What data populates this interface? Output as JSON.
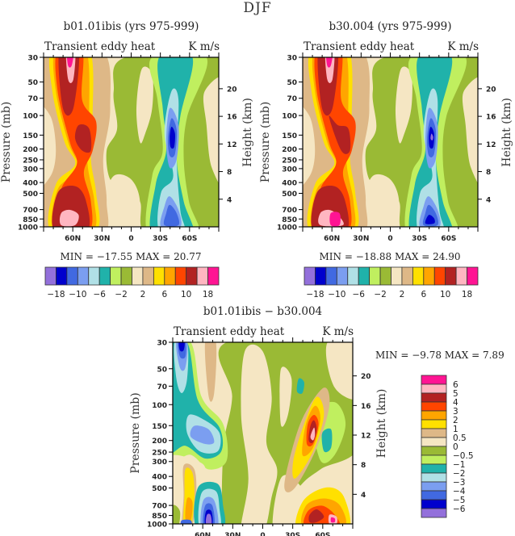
{
  "figure_title": "DJF",
  "chart_data": [
    {
      "id": "panel-a",
      "type": "heatmap",
      "title": "b01.01ibis (yrs 975-999)",
      "left_string": "Transient eddy heat",
      "right_string": "K m/s",
      "xlabel": "",
      "ylabel": "Pressure (mb)",
      "ylabel_right": "Height (km)",
      "x_tick_labels": [
        "60N",
        "30N",
        "0",
        "30S",
        "60S"
      ],
      "x_range": [
        "90N",
        "90S"
      ],
      "y_tick_labels": [
        "30",
        "50",
        "70",
        "100",
        "150",
        "200",
        "250",
        "300",
        "400",
        "500",
        "700",
        "850",
        "1000"
      ],
      "y_range_mb": [
        1000,
        30
      ],
      "y_right_tick_labels": [
        "4",
        "8",
        "12",
        "16",
        "20"
      ],
      "min_max_text": "MIN = −17.55   MAX =  20.77",
      "min": -17.55,
      "max": 20.77,
      "colorbar": {
        "orientation": "horizontal",
        "labels": [
          "−18",
          "−10",
          "−6",
          "−2",
          "2",
          "6",
          "10",
          "18"
        ],
        "levels": [
          -18,
          -14,
          -10,
          -8,
          -6,
          -4,
          -2,
          0,
          2,
          4,
          6,
          8,
          10,
          14,
          18
        ],
        "colors": [
          "#9370db",
          "#0000cd",
          "#4169e1",
          "#7b9ef0",
          "#b0e0e6",
          "#20b2aa",
          "#c0ef5f",
          "#9aba35",
          "#f5e6c3",
          "#deb887",
          "#ffe000",
          "#ffa500",
          "#ff4500",
          "#b22222",
          "#ffb6c1",
          "#ff1493"
        ]
      },
      "features": [
        {
          "name": "NH positive maximum",
          "lat": "60N",
          "level_mb": "30-1000",
          "max_class": 18
        },
        {
          "name": "SH negative minimum",
          "lat": "45S",
          "level_mb": "150",
          "min_class": -18
        }
      ]
    },
    {
      "id": "panel-b",
      "type": "heatmap",
      "title": "b30.004 (yrs 975-999)",
      "left_string": "Transient eddy heat",
      "right_string": "K m/s",
      "xlabel": "",
      "ylabel": "Pressure (mb)",
      "ylabel_right": "Height (km)",
      "x_tick_labels": [
        "60N",
        "30N",
        "0",
        "30S",
        "60S"
      ],
      "x_range": [
        "90N",
        "90S"
      ],
      "y_tick_labels": [
        "30",
        "50",
        "70",
        "100",
        "150",
        "200",
        "250",
        "300",
        "400",
        "500",
        "700",
        "850",
        "1000"
      ],
      "y_range_mb": [
        1000,
        30
      ],
      "y_right_tick_labels": [
        "4",
        "8",
        "12",
        "16",
        "20"
      ],
      "min_max_text": "MIN = −18.88   MAX =  24.90",
      "min": -18.88,
      "max": 24.9,
      "colorbar": {
        "orientation": "horizontal",
        "labels": [
          "−18",
          "−10",
          "−6",
          "−2",
          "2",
          "6",
          "10",
          "18"
        ],
        "levels": [
          -18,
          -14,
          -10,
          -8,
          -6,
          -4,
          -2,
          0,
          2,
          4,
          6,
          8,
          10,
          14,
          18
        ],
        "colors": [
          "#9370db",
          "#0000cd",
          "#4169e1",
          "#7b9ef0",
          "#b0e0e6",
          "#20b2aa",
          "#c0ef5f",
          "#9aba35",
          "#f5e6c3",
          "#deb887",
          "#ffe000",
          "#ffa500",
          "#ff4500",
          "#b22222",
          "#ffb6c1",
          "#ff1493"
        ]
      },
      "features": [
        {
          "name": "NH positive maximum",
          "lat": "60N",
          "level_mb": "30-1000",
          "max_class": 18
        },
        {
          "name": "SH negative minimum",
          "lat": "45S",
          "level_mb": "150",
          "min_class": -18
        }
      ]
    },
    {
      "id": "panel-diff",
      "type": "heatmap",
      "title": "b01.01ibis − b30.004",
      "left_string": "Transient eddy heat",
      "right_string": "K m/s",
      "xlabel": "",
      "ylabel": "Pressure (mb)",
      "ylabel_right": "Height (km)",
      "x_tick_labels": [
        "60N",
        "30N",
        "0",
        "30S",
        "60S"
      ],
      "x_range": [
        "90N",
        "90S"
      ],
      "y_tick_labels": [
        "30",
        "50",
        "70",
        "100",
        "150",
        "200",
        "250",
        "300",
        "400",
        "500",
        "700",
        "850",
        "1000"
      ],
      "y_range_mb": [
        1000,
        30
      ],
      "y_right_tick_labels": [
        "4",
        "8",
        "12",
        "16",
        "20"
      ],
      "min_max_text": "MIN =   −9.78   MAX =    7.89",
      "min": -9.78,
      "max": 7.89,
      "colorbar": {
        "orientation": "vertical",
        "labels": [
          "6",
          "5",
          "4",
          "3",
          "2",
          "1",
          "0.5",
          "0",
          "−0.5",
          "−1",
          "−2",
          "−3",
          "−4",
          "−5",
          "−6"
        ],
        "levels": [
          6,
          5,
          4,
          3,
          2,
          1,
          0.5,
          0,
          -0.5,
          -1,
          -2,
          -3,
          -4,
          -5,
          -6
        ],
        "colors": [
          "#ff1493",
          "#ffb6c1",
          "#b22222",
          "#ff4500",
          "#ffa500",
          "#ffe000",
          "#deb887",
          "#f5e6c3",
          "#9aba35",
          "#c0ef5f",
          "#20b2aa",
          "#b0e0e6",
          "#7b9ef0",
          "#4169e1",
          "#0000cd",
          "#9370db"
        ]
      },
      "features": [
        {
          "name": "NH stratospheric negative",
          "lat": "70N",
          "level_mb": "30",
          "min_class": -6
        },
        {
          "name": "SH upper positive",
          "lat": "50S",
          "level_mb": "200",
          "max_class": 5
        },
        {
          "name": "SH surface positive",
          "lat": "75S",
          "level_mb": "1000",
          "max_class": 6
        },
        {
          "name": "NH surface negative",
          "lat": "40N",
          "level_mb": "1000",
          "min_class": -6
        }
      ]
    }
  ]
}
